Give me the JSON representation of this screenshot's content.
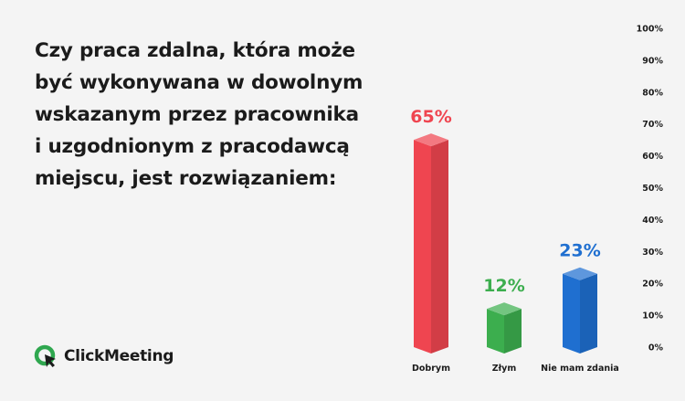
{
  "question": "Czy praca zdalna, która może\nbyć wykonywana w dowolnym\nwskazanym przez pracownika\ni uzgodnionym z pracodawcą\nmiejscu, jest rozwiązaniem:",
  "logo": {
    "text": "ClickMeeting",
    "colors": {
      "ring": "#2fa74f",
      "arrow": "#1b1b1b"
    }
  },
  "chart_data": {
    "type": "bar",
    "categories": [
      "Dobrym",
      "Złym",
      "Nie mam zdania"
    ],
    "values": [
      65,
      12,
      23
    ],
    "value_labels": [
      "65%",
      "12%",
      "23%"
    ],
    "colors": [
      "#ef4550",
      "#3cae4e",
      "#1f6fd0"
    ],
    "ylim": [
      0,
      100
    ],
    "y_ticks": [
      "0%",
      "10%",
      "20%",
      "30%",
      "40%",
      "50%",
      "60%",
      "70%",
      "80%",
      "90%",
      "100%"
    ],
    "y_axis_side": "right",
    "grid": false,
    "style": "3d-columns"
  }
}
